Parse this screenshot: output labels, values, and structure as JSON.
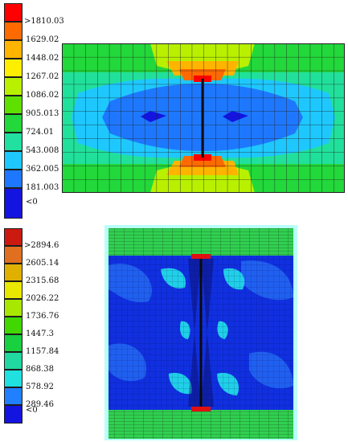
{
  "legend_top": {
    "labels": [
      ">1810.03",
      "1629.02",
      "1448.02",
      "1267.02",
      "1086.02",
      "905.013",
      "724.01",
      "543.008",
      "362.005",
      "181.003",
      "<0"
    ],
    "colors": [
      "#ff0000",
      "#ff6a00",
      "#ffb400",
      "#ffee00",
      "#b8f000",
      "#60e000",
      "#22d83a",
      "#22e0a0",
      "#1ec8ff",
      "#1e78ff",
      "#1414e0"
    ]
  },
  "legend_bottom": {
    "labels": [
      ">2894.6",
      "2605.14",
      "2315.68",
      "2026.22",
      "1736.76",
      "1447.3",
      "1157.84",
      "868.38",
      "578.92",
      "289.46",
      "<0"
    ],
    "colors": [
      "#cc1a10",
      "#e07020",
      "#e0b000",
      "#e8e800",
      "#a8e800",
      "#40d800",
      "#18d040",
      "#20d8a0",
      "#20e0e0",
      "#2080ff",
      "#1414e0"
    ]
  },
  "mesh_colors": {
    "deep_blue": "#1030e0",
    "mid_blue": "#2060f0",
    "cyan": "#20d0e8",
    "green": "#30d050",
    "yellow_green": "#a8e800",
    "orange": "#ff8800",
    "red": "#e01010",
    "grid_line": "#202020"
  }
}
